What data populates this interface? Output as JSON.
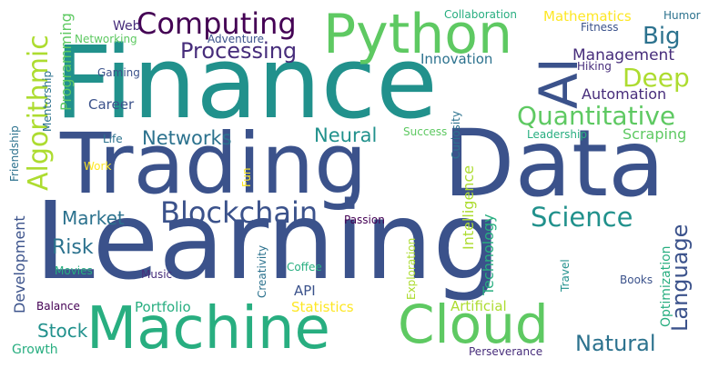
{
  "palette": {
    "purple": "#440154",
    "indigo": "#472d7b",
    "slate": "#3b528b",
    "steel": "#2c728e",
    "teal": "#21918c",
    "sea": "#28ae80",
    "green": "#5ec962",
    "lime": "#addc30",
    "yellow": "#fde725"
  },
  "words": [
    "Learning",
    "Finance",
    "Trading",
    "Data",
    "Machine",
    "Cloud",
    "Python",
    "AI",
    "Computing",
    "Algorithmic",
    "Blockchain",
    "Quantitative",
    "Science",
    "Processing",
    "Deep",
    "Big",
    "Natural",
    "Language",
    "Market",
    "Stock",
    "Risk",
    "Networks",
    "Neural",
    "Management",
    "Automation",
    "Innovation",
    "Mathematics",
    "Collaboration",
    "Humor",
    "Fitness",
    "Hiking",
    "Web",
    "Adventure",
    "Networking",
    "Programming",
    "Gaming",
    "Mentorship",
    "Career",
    "Friendship",
    "Life",
    "Work",
    "Fun",
    "Success",
    "Curiosity",
    "Leadership",
    "Scraping",
    "Intelligence",
    "Technology",
    "Development",
    "Movies",
    "Music",
    "Creativity",
    "Coffee",
    "Exploration",
    "Passion",
    "Optimization",
    "Travel",
    "Books",
    "API",
    "Portfolio",
    "Statistics",
    "Artificial",
    "Balance",
    "Growth",
    "Perseverance"
  ]
}
